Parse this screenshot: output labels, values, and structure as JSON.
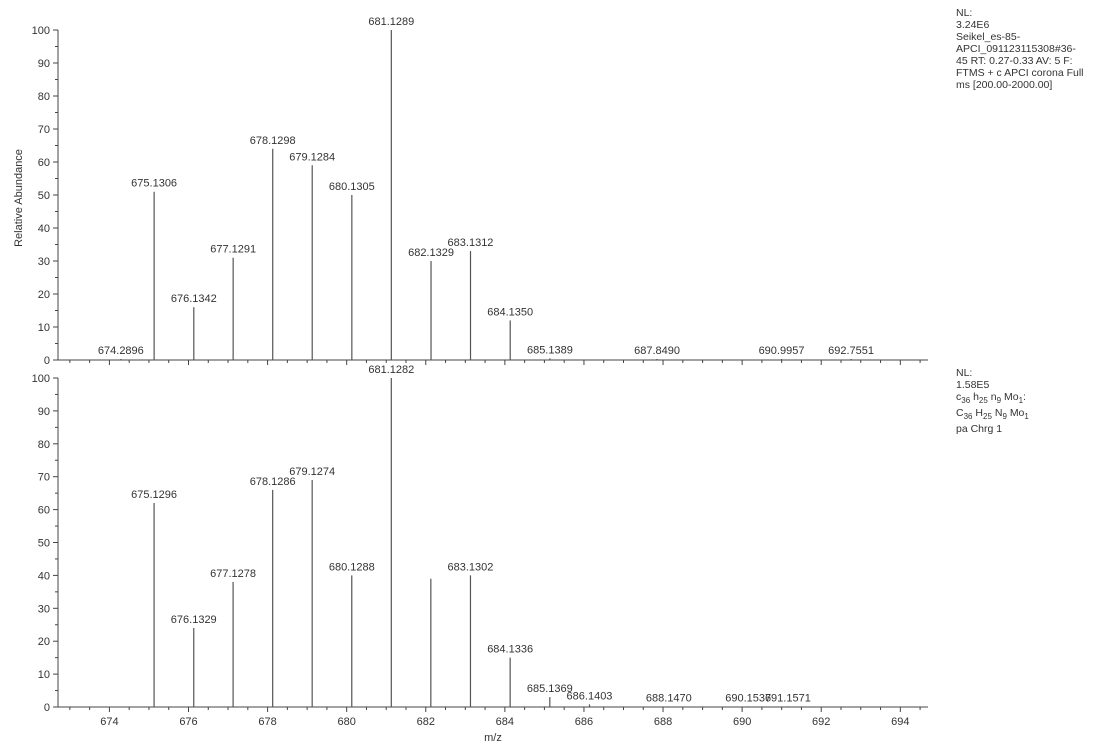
{
  "chart_data": [
    {
      "type": "bar",
      "panel": "top",
      "ylabel": "Relative Abundance",
      "ylim": [
        0,
        100
      ],
      "xlim": [
        672.7,
        694.7
      ],
      "yticks": [
        0,
        10,
        20,
        30,
        40,
        50,
        60,
        70,
        80,
        90,
        100
      ],
      "peaks": [
        {
          "x": 674.2896,
          "y": 0.3,
          "label": "674.2896"
        },
        {
          "x": 675.1306,
          "y": 51,
          "label": "675.1306"
        },
        {
          "x": 676.1342,
          "y": 16,
          "label": "676.1342"
        },
        {
          "x": 677.1291,
          "y": 31,
          "label": "677.1291"
        },
        {
          "x": 678.1298,
          "y": 64,
          "label": "678.1298"
        },
        {
          "x": 679.1284,
          "y": 59,
          "label": "679.1284"
        },
        {
          "x": 680.1305,
          "y": 50,
          "label": "680.1305"
        },
        {
          "x": 681.1289,
          "y": 100,
          "label": "681.1289"
        },
        {
          "x": 682.1329,
          "y": 30,
          "label": "682.1329"
        },
        {
          "x": 683.1312,
          "y": 33,
          "label": "683.1312"
        },
        {
          "x": 684.135,
          "y": 12,
          "label": "684.1350"
        },
        {
          "x": 685.1389,
          "y": 0.5,
          "label": "685.1389"
        },
        {
          "x": 687.849,
          "y": 0.3,
          "label": "687.8490"
        },
        {
          "x": 690.9957,
          "y": 0.3,
          "label": "690.9957"
        },
        {
          "x": 692.7551,
          "y": 0.3,
          "label": "692.7551"
        }
      ],
      "info": {
        "nl_label": "NL:",
        "nl_value": "3.24E6",
        "lines": [
          "Seikel_es-85-",
          "APCI_091123115308#36-",
          "45  RT: 0.27-0.33  AV: 5 F:",
          "FTMS + c APCI corona Full",
          "ms [200.00-2000.00]"
        ]
      }
    },
    {
      "type": "bar",
      "panel": "bottom",
      "xlabel": "m/z",
      "ylim": [
        0,
        100
      ],
      "xlim": [
        672.7,
        694.7
      ],
      "yticks": [
        0,
        10,
        20,
        30,
        40,
        50,
        60,
        70,
        80,
        90,
        100
      ],
      "xticks": [
        674,
        676,
        678,
        680,
        682,
        684,
        686,
        688,
        690,
        692,
        694
      ],
      "peaks": [
        {
          "x": 675.1296,
          "y": 62,
          "label": "675.1296"
        },
        {
          "x": 676.1329,
          "y": 24,
          "label": "676.1329"
        },
        {
          "x": 677.1278,
          "y": 38,
          "label": "677.1278"
        },
        {
          "x": 678.1286,
          "y": 66,
          "label": "678.1286"
        },
        {
          "x": 679.1274,
          "y": 69,
          "label": "679.1274"
        },
        {
          "x": 680.1288,
          "y": 40,
          "label": "680.1288"
        },
        {
          "x": 681.1282,
          "y": 100,
          "label": "681.1282"
        },
        {
          "x": 682.1282,
          "y": 39,
          "label": ""
        },
        {
          "x": 683.1302,
          "y": 40,
          "label": "683.1302"
        },
        {
          "x": 684.1336,
          "y": 15,
          "label": "684.1336"
        },
        {
          "x": 685.1369,
          "y": 3,
          "label": "685.1369"
        },
        {
          "x": 686.1403,
          "y": 0.8,
          "label": "686.1403"
        },
        {
          "x": 688.147,
          "y": 0.2,
          "label": "688.1470"
        },
        {
          "x": 690.1537,
          "y": 0.2,
          "label": "690.1537"
        },
        {
          "x": 691.1571,
          "y": 0.2,
          "label": "691.1571"
        }
      ],
      "info": {
        "nl_label": "NL:",
        "nl_value": "1.58E5",
        "formula_lower": "c36 h25 n9 Mo1:",
        "formula_upper": "C36 H25 N9 Mo1",
        "charge": "pa Chrg 1"
      }
    }
  ],
  "colors": {
    "line": "#555555",
    "axis": "#444444",
    "background": "#ffffff"
  }
}
